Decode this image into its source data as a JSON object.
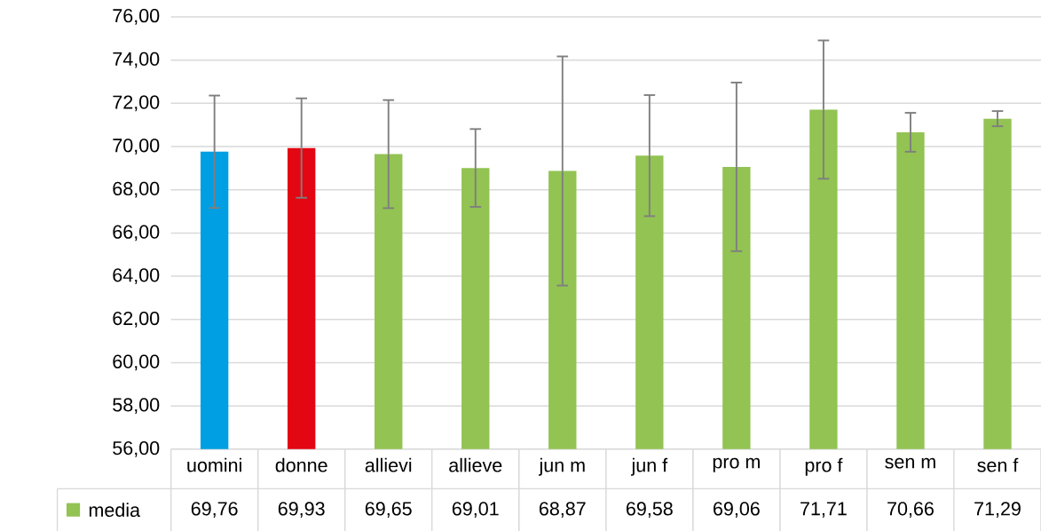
{
  "chart_data": {
    "type": "bar",
    "categories": [
      "uomini",
      "donne",
      "allievi",
      "allieve",
      "jun m",
      "jun f",
      "pro m",
      "pro f",
      "sen m",
      "sen f"
    ],
    "series": [
      {
        "name": "media",
        "values": [
          69.76,
          69.93,
          69.65,
          69.01,
          68.87,
          69.58,
          69.06,
          71.71,
          70.66,
          71.29
        ],
        "colors": [
          "#009fe3",
          "#e30613",
          "#92c353",
          "#92c353",
          "#92c353",
          "#92c353",
          "#92c353",
          "#92c353",
          "#92c353",
          "#92c353"
        ],
        "errors": [
          2.6,
          2.3,
          2.5,
          1.8,
          5.3,
          2.8,
          3.9,
          3.2,
          0.9,
          0.35
        ],
        "value_labels": [
          "69,76",
          "69,93",
          "69,65",
          "69,01",
          "68,87",
          "69,58",
          "69,06",
          "71,71",
          "70,66",
          "71,29"
        ]
      }
    ],
    "ylim": [
      56,
      76
    ],
    "yticks": [
      {
        "value": 56,
        "label": "56,00"
      },
      {
        "value": 58,
        "label": "58,00"
      },
      {
        "value": 60,
        "label": "60,00"
      },
      {
        "value": 62,
        "label": "62,00"
      },
      {
        "value": 64,
        "label": "64,00"
      },
      {
        "value": 66,
        "label": "66,00"
      },
      {
        "value": 68,
        "label": "68,00"
      },
      {
        "value": 70,
        "label": "70,00"
      },
      {
        "value": 72,
        "label": "72,00"
      },
      {
        "value": 74,
        "label": "74,00"
      },
      {
        "value": 76,
        "label": "76,00"
      }
    ],
    "grid": "y",
    "legend": "bottom left"
  }
}
